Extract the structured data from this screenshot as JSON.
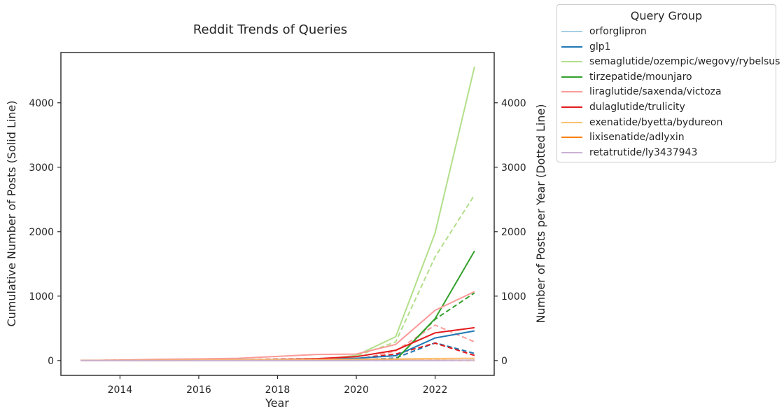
{
  "chart_data": {
    "type": "line",
    "title": "Reddit Trends of Queries",
    "xlabel": "Year",
    "ylabel_left": "Cumulative Number of Posts (Solid Line)",
    "ylabel_right": "Number of Posts per Year (Dotted Line)",
    "x": [
      2013,
      2014,
      2015,
      2016,
      2017,
      2018,
      2019,
      2020,
      2021,
      2022,
      2023
    ],
    "xticks": [
      2014,
      2016,
      2018,
      2020,
      2022
    ],
    "xlim": [
      2012.5,
      2023.5
    ],
    "yticks": [
      0,
      1000,
      2000,
      3000,
      4000
    ],
    "ylim": [
      -230,
      4780
    ],
    "grid": false,
    "legend": {
      "title": "Query Group",
      "placement": "outside-top-right"
    },
    "series": [
      {
        "name": "orforglipron",
        "color": "#a6cee3",
        "cumulative": [
          0,
          0,
          0,
          0,
          0,
          0,
          0,
          0,
          0,
          2,
          5
        ],
        "per_year": [
          0,
          0,
          0,
          0,
          0,
          0,
          0,
          0,
          0,
          2,
          3
        ]
      },
      {
        "name": "glp1",
        "color": "#1f78b4",
        "cumulative": [
          0,
          2,
          5,
          8,
          12,
          18,
          25,
          35,
          75,
          350,
          460
        ],
        "per_year": [
          0,
          2,
          3,
          3,
          4,
          6,
          7,
          10,
          40,
          275,
          110
        ]
      },
      {
        "name": "semaglutide/ozempic/wegovy/rybelsus",
        "color": "#b2df8a",
        "cumulative": [
          0,
          0,
          0,
          0,
          0,
          2,
          10,
          80,
          370,
          1980,
          4560
        ],
        "per_year": [
          0,
          0,
          0,
          0,
          0,
          2,
          8,
          70,
          290,
          1610,
          2570
        ]
      },
      {
        "name": "tirzepatide/mounjaro",
        "color": "#33a02c",
        "cumulative": [
          0,
          0,
          0,
          0,
          0,
          0,
          0,
          0,
          10,
          650,
          1700
        ],
        "per_year": [
          0,
          0,
          0,
          0,
          0,
          0,
          0,
          0,
          10,
          640,
          1050
        ]
      },
      {
        "name": "liraglutide/saxenda/victoza",
        "color": "#fb9a99",
        "cumulative": [
          0,
          8,
          20,
          25,
          35,
          65,
          95,
          100,
          250,
          780,
          1070
        ],
        "per_year": [
          0,
          8,
          12,
          5,
          10,
          30,
          30,
          5,
          150,
          550,
          290
        ]
      },
      {
        "name": "dulaglutide/trulicity",
        "color": "#e31a1c",
        "cumulative": [
          0,
          0,
          2,
          4,
          6,
          15,
          30,
          60,
          160,
          430,
          510
        ],
        "per_year": [
          0,
          0,
          2,
          2,
          2,
          9,
          15,
          30,
          100,
          270,
          80
        ]
      },
      {
        "name": "exenatide/byetta/bydureon",
        "color": "#fdbf6f",
        "cumulative": [
          0,
          3,
          6,
          9,
          12,
          15,
          18,
          20,
          25,
          32,
          35
        ],
        "per_year": [
          0,
          3,
          3,
          3,
          3,
          3,
          3,
          2,
          5,
          7,
          3
        ]
      },
      {
        "name": "lixisenatide/adlyxin",
        "color": "#ff7f00",
        "cumulative": [
          0,
          0,
          1,
          1,
          2,
          2,
          3,
          3,
          4,
          4,
          5
        ],
        "per_year": [
          0,
          0,
          1,
          0,
          1,
          0,
          1,
          0,
          1,
          0,
          1
        ]
      },
      {
        "name": "retatrutide/ly3437943",
        "color": "#cab2d6",
        "cumulative": [
          0,
          0,
          0,
          0,
          0,
          0,
          0,
          0,
          0,
          0,
          5
        ],
        "per_year": [
          0,
          0,
          0,
          0,
          0,
          0,
          0,
          0,
          0,
          0,
          5
        ]
      }
    ]
  }
}
